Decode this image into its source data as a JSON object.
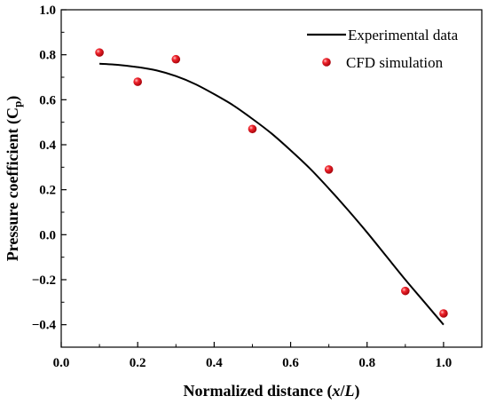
{
  "chart_data": {
    "type": "line",
    "title": "",
    "xlabel": {
      "pre": "Normalized distance (",
      "var1": "x",
      "slash": "/",
      "var2": "L",
      "post": ")"
    },
    "ylabel": {
      "pre": "Pressure coefficient (C",
      "sub": "p",
      "post": ")"
    },
    "xlim": [
      0.0,
      1.1
    ],
    "ylim": [
      -0.5,
      1.0
    ],
    "xticks": [
      "0.0",
      "0.2",
      "0.4",
      "0.6",
      "0.8",
      "1.0"
    ],
    "yticks": [
      "-0.4",
      "-0.2",
      "0.0",
      "0.2",
      "0.4",
      "0.6",
      "0.8",
      "1.0"
    ],
    "legend_position": "top-right",
    "series": [
      {
        "name": "Experimental data",
        "kind": "line",
        "color": "#000000",
        "x": [
          0.1,
          0.15,
          0.2,
          0.25,
          0.3,
          0.35,
          0.4,
          0.45,
          0.5,
          0.55,
          0.6,
          0.65,
          0.7,
          0.75,
          0.8,
          0.85,
          0.9,
          0.95,
          1.0
        ],
        "y": [
          0.76,
          0.755,
          0.745,
          0.73,
          0.705,
          0.67,
          0.625,
          0.575,
          0.515,
          0.45,
          0.375,
          0.295,
          0.205,
          0.11,
          0.01,
          -0.095,
          -0.2,
          -0.3,
          -0.4
        ]
      },
      {
        "name": "CFD simulation",
        "kind": "scatter",
        "color": "#e8141c",
        "x": [
          0.1,
          0.2,
          0.3,
          0.5,
          0.7,
          0.9,
          1.0
        ],
        "y": [
          0.81,
          0.68,
          0.78,
          0.47,
          0.29,
          -0.25,
          -0.35
        ]
      }
    ]
  }
}
